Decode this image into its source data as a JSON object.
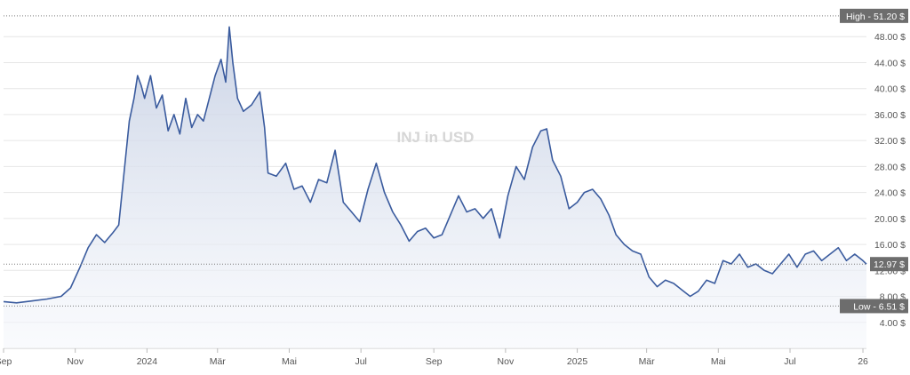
{
  "chart_data": {
    "type": "area",
    "title": "INJ in USD",
    "currency_suffix": " $",
    "ylim": [
      0,
      52
    ],
    "y_ticks": [
      4,
      8,
      12,
      16,
      20,
      24,
      28,
      32,
      36,
      40,
      44,
      48
    ],
    "y_tick_labels": [
      "4.00 $",
      "8.00 $",
      "12.00 $",
      "16.00 $",
      "20.00 $",
      "24.00 $",
      "28.00 $",
      "32.00 $",
      "36.00 $",
      "40.00 $",
      "44.00 $",
      "48.00 $"
    ],
    "x_range": [
      "2023-09-01",
      "2025-09-04"
    ],
    "x_ticks": [
      {
        "date": "2023-09-01",
        "label": "Sep"
      },
      {
        "date": "2023-11-01",
        "label": "Nov"
      },
      {
        "date": "2024-01-01",
        "label": "2024"
      },
      {
        "date": "2024-03-01",
        "label": "Mär"
      },
      {
        "date": "2024-05-01",
        "label": "Mai"
      },
      {
        "date": "2024-07-01",
        "label": "Jul"
      },
      {
        "date": "2024-09-01",
        "label": "Sep"
      },
      {
        "date": "2024-11-01",
        "label": "Nov"
      },
      {
        "date": "2025-01-01",
        "label": "2025"
      },
      {
        "date": "2025-03-01",
        "label": "Mär"
      },
      {
        "date": "2025-05-01",
        "label": "Mai"
      },
      {
        "date": "2025-07-01",
        "label": "Jul"
      },
      {
        "date": "2025-09-01",
        "label": "26"
      }
    ],
    "high": {
      "label": "High",
      "value": 51.2,
      "text": "51.20 $"
    },
    "low": {
      "label": "Low",
      "value": 6.51,
      "text": "6.51 $"
    },
    "current": {
      "value": 12.97,
      "text": "12.97 $"
    },
    "colors": {
      "line": "#3a5b9e",
      "fill_top": "#c5cfe3",
      "fill_bottom": "#f6f8fc",
      "grid": "#e6e6e6",
      "tick_text": "#555555",
      "label_bg": "#6d6d6d",
      "label_text": "#ffffff",
      "title_text": "#d6d6d6",
      "ref_line": "#7a7a7a"
    },
    "series": [
      {
        "x": [
          "2023-09-01",
          "2023-09-12",
          "2023-09-25",
          "2023-10-08",
          "2023-10-20",
          "2023-10-28",
          "2023-11-05",
          "2023-11-12",
          "2023-11-19",
          "2023-11-26",
          "2023-12-03",
          "2023-12-08",
          "2023-12-13",
          "2023-12-17",
          "2023-12-21",
          "2023-12-24",
          "2023-12-27",
          "2023-12-30",
          "2024-01-04",
          "2024-01-09",
          "2024-01-14",
          "2024-01-19",
          "2024-01-24",
          "2024-01-29",
          "2024-02-03",
          "2024-02-08",
          "2024-02-13",
          "2024-02-18",
          "2024-02-23",
          "2024-02-28",
          "2024-03-04",
          "2024-03-08",
          "2024-03-11",
          "2024-03-14",
          "2024-03-18",
          "2024-03-23",
          "2024-03-30",
          "2024-04-06",
          "2024-04-10",
          "2024-04-13",
          "2024-04-20",
          "2024-04-28",
          "2024-05-05",
          "2024-05-12",
          "2024-05-19",
          "2024-05-26",
          "2024-06-02",
          "2024-06-09",
          "2024-06-16",
          "2024-06-23",
          "2024-06-30",
          "2024-07-07",
          "2024-07-14",
          "2024-07-21",
          "2024-07-28",
          "2024-08-04",
          "2024-08-11",
          "2024-08-18",
          "2024-08-25",
          "2024-09-01",
          "2024-09-08",
          "2024-09-15",
          "2024-09-22",
          "2024-09-29",
          "2024-10-06",
          "2024-10-13",
          "2024-10-20",
          "2024-10-27",
          "2024-11-03",
          "2024-11-10",
          "2024-11-17",
          "2024-11-24",
          "2024-12-01",
          "2024-12-06",
          "2024-12-11",
          "2024-12-18",
          "2024-12-25",
          "2025-01-01",
          "2025-01-07",
          "2025-01-14",
          "2025-01-21",
          "2025-01-28",
          "2025-02-03",
          "2025-02-10",
          "2025-02-17",
          "2025-02-24",
          "2025-03-03",
          "2025-03-10",
          "2025-03-17",
          "2025-03-24",
          "2025-03-31",
          "2025-04-07",
          "2025-04-14",
          "2025-04-21",
          "2025-04-28",
          "2025-05-05",
          "2025-05-12",
          "2025-05-19",
          "2025-05-26",
          "2025-06-02",
          "2025-06-09",
          "2025-06-16",
          "2025-06-23",
          "2025-06-30",
          "2025-07-07",
          "2025-07-14",
          "2025-07-21",
          "2025-07-28",
          "2025-08-04",
          "2025-08-11",
          "2025-08-18",
          "2025-08-25",
          "2025-09-01",
          "2025-09-04"
        ],
        "values": [
          7.2,
          7.0,
          7.3,
          7.6,
          8.0,
          9.3,
          12.5,
          15.5,
          17.5,
          16.3,
          17.8,
          19.0,
          28.0,
          35.0,
          38.5,
          42.0,
          40.5,
          38.5,
          42.0,
          37.0,
          39.0,
          33.5,
          36.0,
          33.0,
          38.5,
          34.0,
          36.0,
          35.0,
          38.5,
          42.0,
          44.5,
          41.0,
          49.5,
          44.0,
          38.5,
          36.5,
          37.5,
          39.5,
          34.0,
          27.0,
          26.5,
          28.5,
          24.5,
          25.0,
          22.5,
          26.0,
          25.5,
          30.5,
          22.5,
          21.0,
          19.5,
          24.5,
          28.5,
          24.0,
          21.0,
          19.0,
          16.5,
          18.0,
          18.5,
          17.0,
          17.5,
          20.5,
          23.5,
          21.0,
          21.5,
          20.0,
          21.5,
          17.0,
          23.5,
          28.0,
          26.0,
          31.0,
          33.5,
          33.8,
          29.0,
          26.5,
          21.5,
          22.5,
          24.0,
          24.5,
          23.0,
          20.5,
          17.5,
          16.0,
          15.0,
          14.5,
          11.0,
          9.5,
          10.5,
          10.0,
          9.0,
          8.0,
          8.8,
          10.5,
          10.0,
          13.5,
          13.0,
          14.5,
          12.5,
          13.0,
          12.0,
          11.5,
          13.0,
          14.5,
          12.5,
          14.5,
          15.0,
          13.5,
          14.5,
          15.5,
          13.5,
          14.5,
          13.5,
          12.97
        ]
      }
    ]
  }
}
